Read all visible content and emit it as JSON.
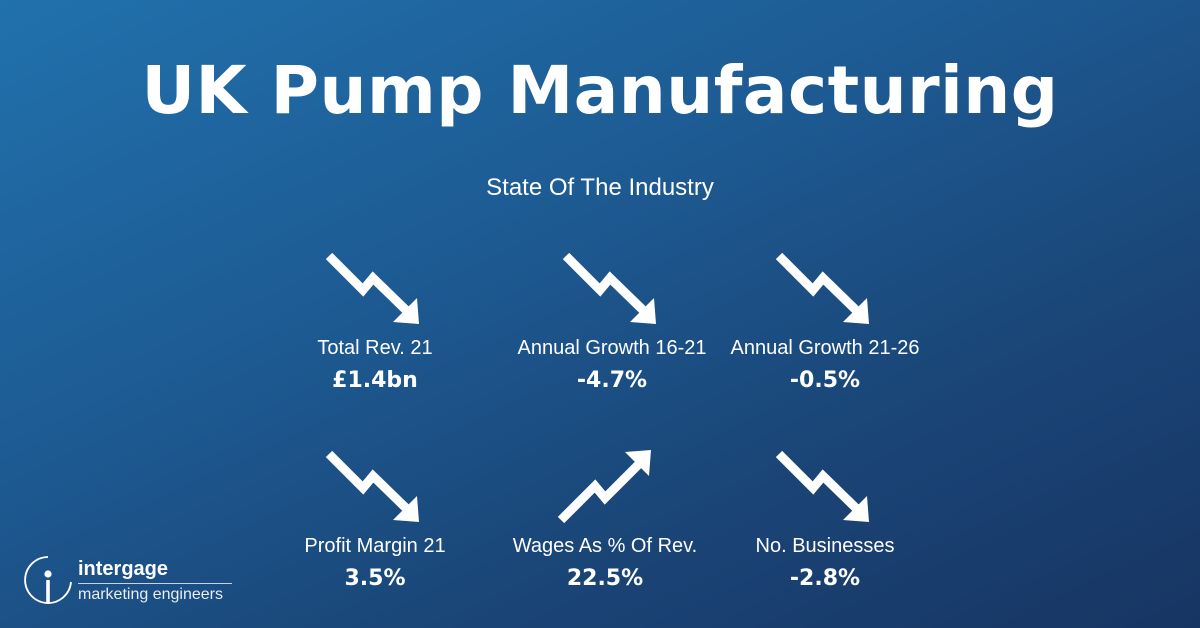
{
  "title": "UK Pump Manufacturing",
  "subtitle": "State Of The Industry",
  "stats": [
    {
      "label": "Total Rev. 21",
      "value": "£1.4bn",
      "trend": "down",
      "icon": "trend-down-arrow"
    },
    {
      "label": "Annual Growth 16-21",
      "value": "-4.7%",
      "trend": "down",
      "icon": "trend-down-arrow"
    },
    {
      "label": "Annual Growth 21-26",
      "value": "-0.5%",
      "trend": "down",
      "icon": "trend-down-arrow"
    },
    {
      "label": "Profit Margin 21",
      "value": "3.5%",
      "trend": "down",
      "icon": "trend-down-arrow"
    },
    {
      "label": "Wages As % Of Rev.",
      "value": "22.5%",
      "trend": "up",
      "icon": "trend-up-arrow"
    },
    {
      "label": "No. Businesses",
      "value": "-2.8%",
      "trend": "down",
      "icon": "trend-down-arrow"
    }
  ],
  "logo": {
    "name": "intergage",
    "tagline": "marketing engineers"
  },
  "colors": {
    "background_start": "#2171ad",
    "background_end": "#173563",
    "text": "#ffffff"
  }
}
